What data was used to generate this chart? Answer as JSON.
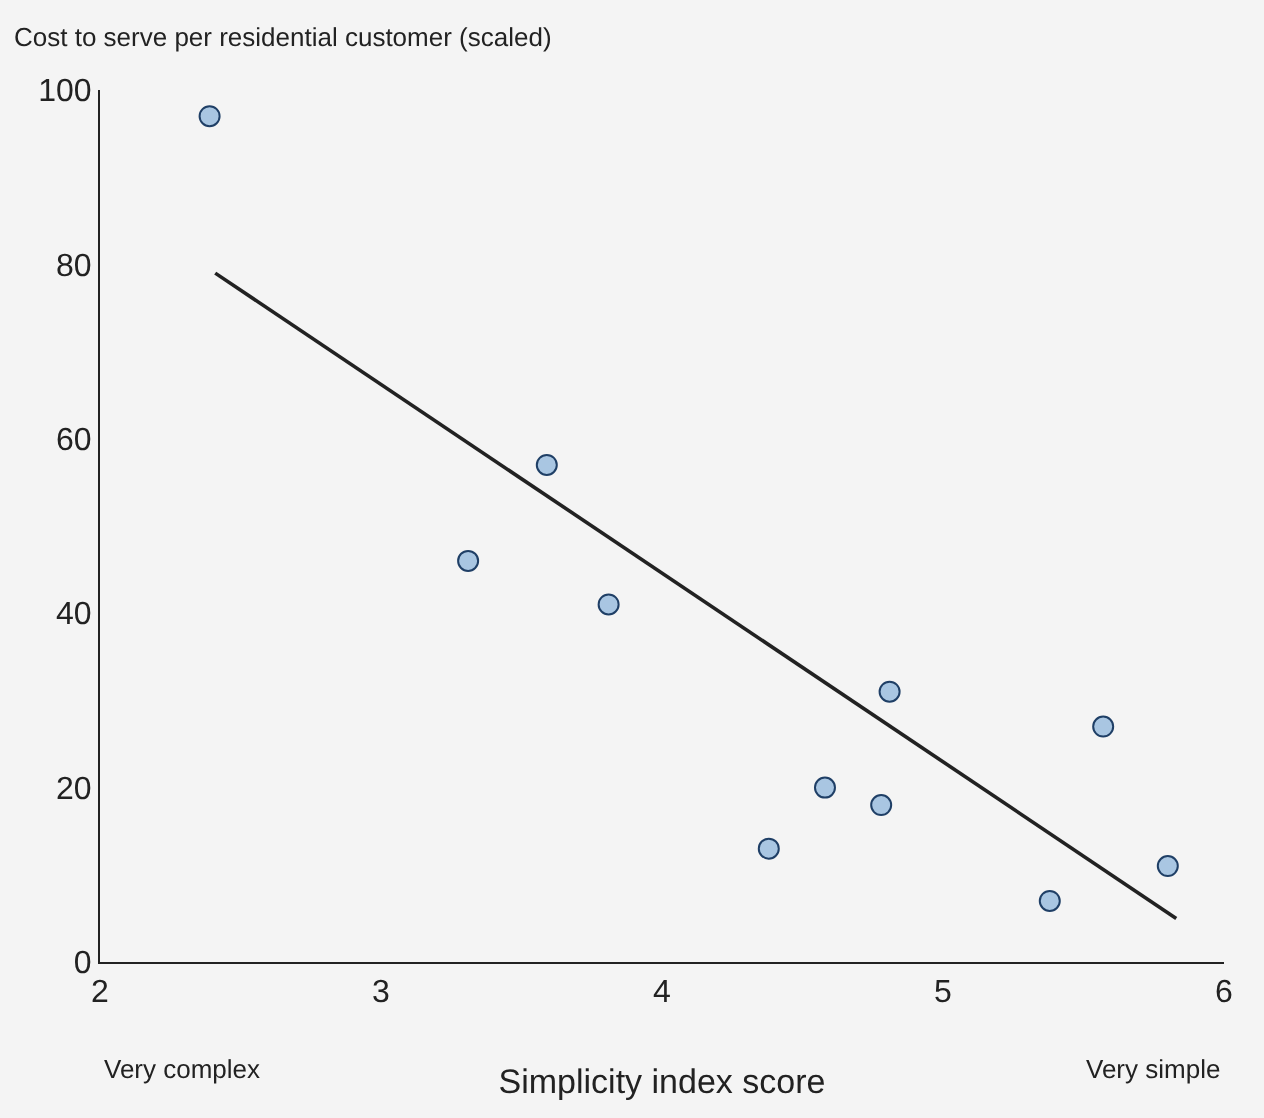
{
  "chart_data": {
    "type": "scatter",
    "ylabel": "Cost to serve per residential customer (scaled)",
    "xlabel": "Simplicity index score",
    "annotations": [
      "Very complex",
      "Very simple"
    ],
    "xlim": [
      2,
      6
    ],
    "xticks": [
      2,
      3,
      4,
      5,
      6
    ],
    "ylim": [
      0,
      100
    ],
    "yticks": [
      0,
      20,
      40,
      60,
      80,
      100
    ],
    "grid": false,
    "legend": false,
    "series": [
      {
        "marker": "circle",
        "color": "#a9c6e2",
        "x": [
          2.39,
          3.31,
          3.59,
          3.81,
          4.38,
          4.58,
          4.78,
          4.81,
          5.38,
          5.57,
          5.8
        ],
        "values": [
          97,
          46,
          57,
          41,
          13,
          20,
          18,
          31,
          7,
          27,
          11
        ]
      },
      {
        "type": "line",
        "color": "#222222",
        "line_style": "solid",
        "x": [
          2.41,
          5.83
        ],
        "values": [
          79,
          5
        ]
      }
    ]
  }
}
